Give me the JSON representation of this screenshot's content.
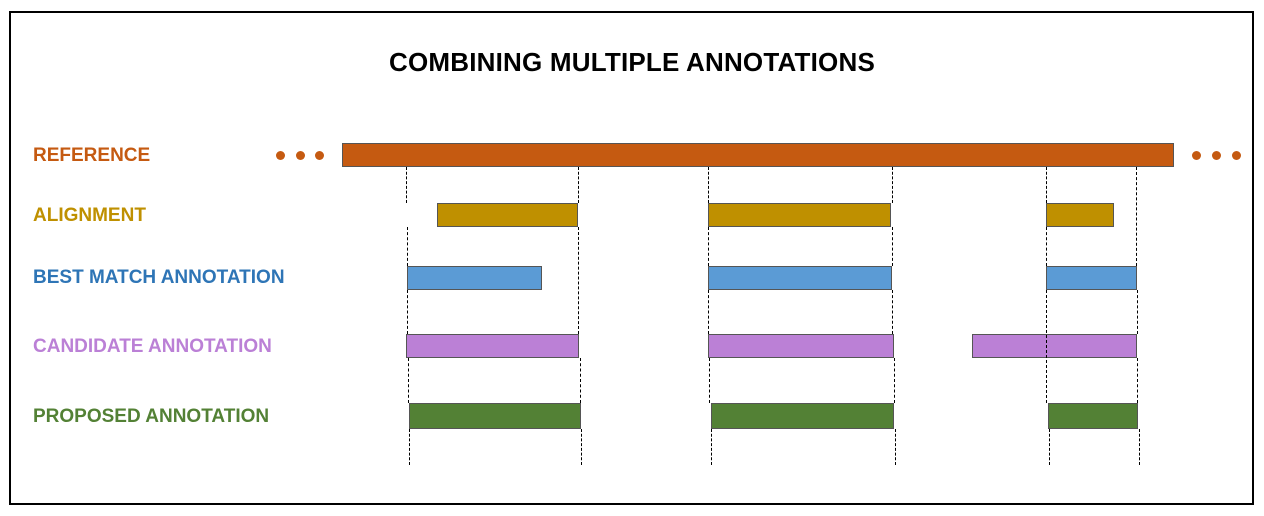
{
  "title": "COMBINING MULTIPLE ANNOTATIONS",
  "colors": {
    "reference": "#C55A11",
    "alignment": "#BF9000",
    "best_match": "#5B9BD5",
    "candidate": "#BB80D6",
    "proposed": "#538135",
    "best_match_label": "#2E75B6"
  },
  "rows": [
    {
      "key": "reference",
      "label": "REFERENCE"
    },
    {
      "key": "alignment",
      "label": "ALIGNMENT"
    },
    {
      "key": "best_match",
      "label": "BEST MATCH ANNOTATION"
    },
    {
      "key": "candidate",
      "label": "CANDIDATE ANNOTATION"
    },
    {
      "key": "proposed",
      "label": "PROPOSED ANNOTATION"
    }
  ]
}
